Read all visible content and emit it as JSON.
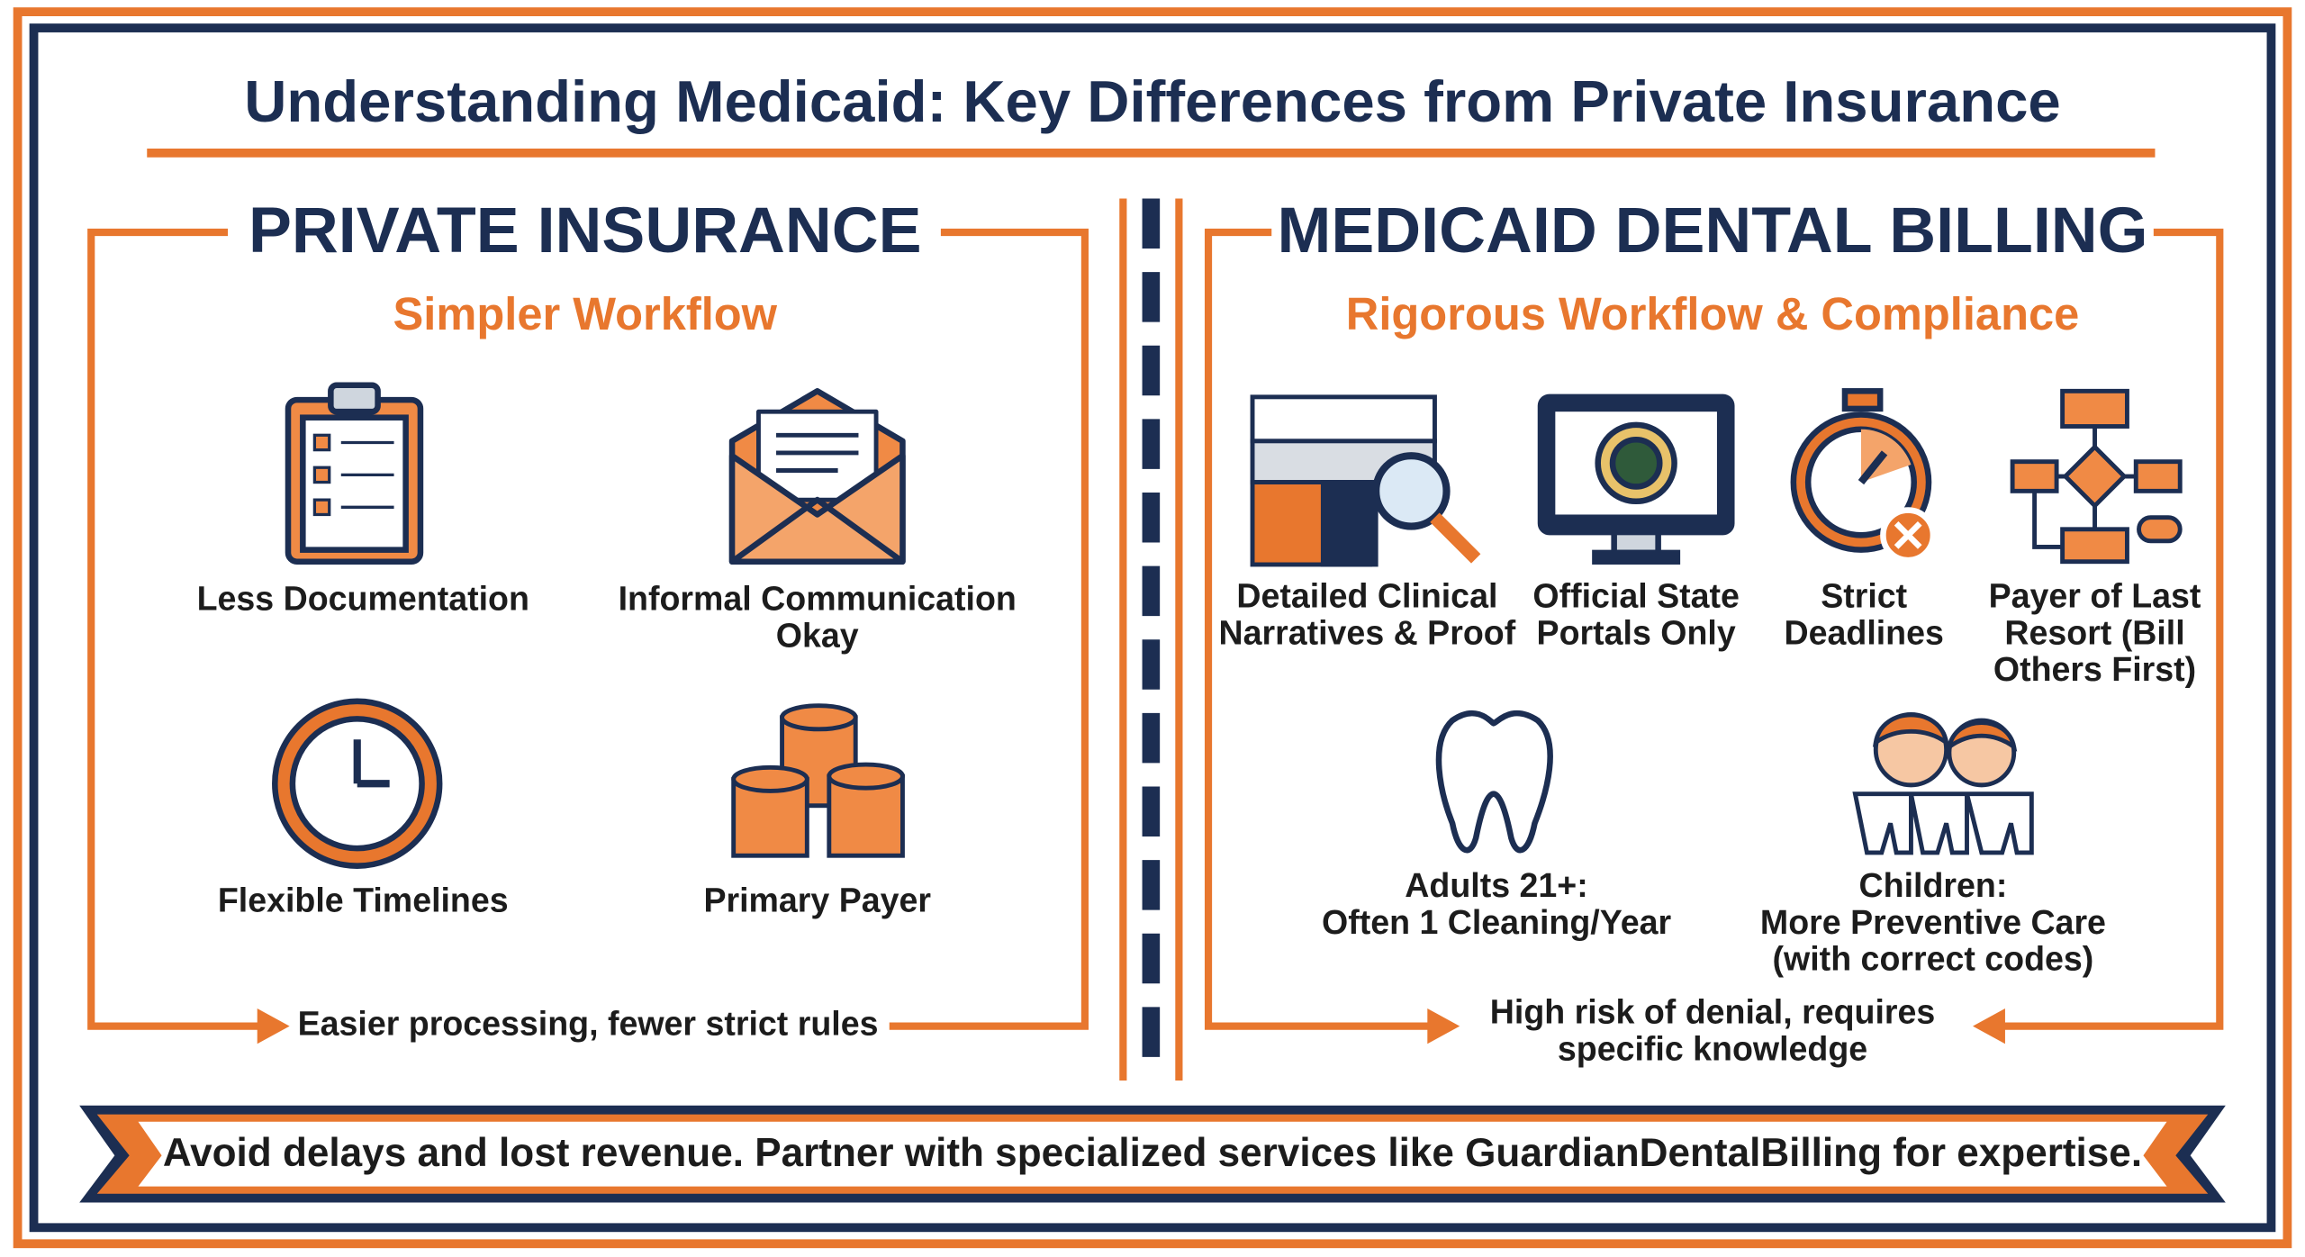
{
  "title": "Understanding Medicaid: Key Differences from Private Insurance",
  "left": {
    "heading": "PRIVATE INSURANCE",
    "subheading": "Simpler Workflow",
    "items": [
      [
        "Less Documentation"
      ],
      [
        "Informal Communication",
        "Okay"
      ],
      [
        "Flexible Timelines"
      ],
      [
        "Primary Payer"
      ]
    ],
    "footer": [
      "Easier processing, fewer strict rules"
    ]
  },
  "right": {
    "heading": "MEDICAID DENTAL BILLING",
    "subheading": "Rigorous Workflow & Compliance",
    "items": [
      [
        "Detailed Clinical",
        "Narratives & Proof"
      ],
      [
        "Official State",
        "Portals Only"
      ],
      [
        "Strict",
        "Deadlines"
      ],
      [
        "Payer of Last",
        "Resort (Bill",
        "Others First)"
      ],
      [
        "Adults 21+:",
        "Often 1 Cleaning/Year"
      ],
      [
        "Children:",
        "More Preventive Care",
        "(with correct codes)"
      ]
    ],
    "footer": [
      "High risk of denial, requires",
      "specific knowledge"
    ]
  },
  "banner": "Avoid delays and lost revenue. Partner with specialized services like GuardianDentalBilling for expertise."
}
